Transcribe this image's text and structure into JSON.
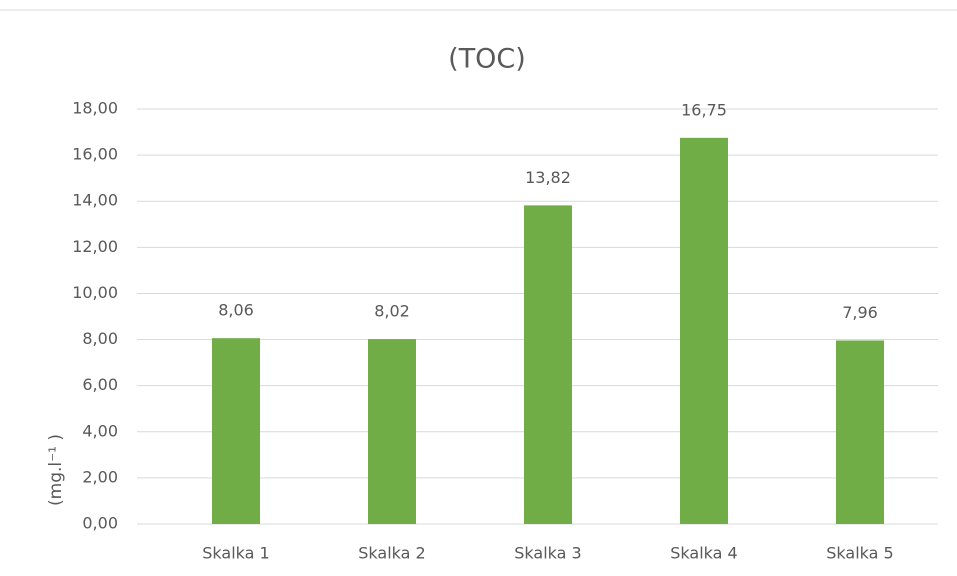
{
  "chart_data": {
    "type": "bar",
    "title": "(TOC)",
    "y_label": "(mg.l⁻¹ )",
    "categories": [
      "Skalka 1",
      "Skalka 2",
      "Skalka 3",
      "Skalka 4",
      "Skalka 5"
    ],
    "values": [
      8.06,
      8.02,
      13.82,
      16.75,
      7.96
    ],
    "value_labels": [
      "8,06",
      "8,02",
      "13,82",
      "16,75",
      "7,96"
    ],
    "color": "#70ad47",
    "ylim": [
      0,
      18
    ],
    "yticks": [
      {
        "value": 0,
        "label": "0,00"
      },
      {
        "value": 2,
        "label": "2,00"
      },
      {
        "value": 4,
        "label": "4,00"
      },
      {
        "value": 6,
        "label": "6,00"
      },
      {
        "value": 8,
        "label": "8,00"
      },
      {
        "value": 10,
        "label": "10,00"
      },
      {
        "value": 12,
        "label": "12,00"
      },
      {
        "value": 14,
        "label": "14,00"
      },
      {
        "value": 16,
        "label": "16,00"
      },
      {
        "value": 18,
        "label": "18,00"
      }
    ],
    "grid": true
  }
}
